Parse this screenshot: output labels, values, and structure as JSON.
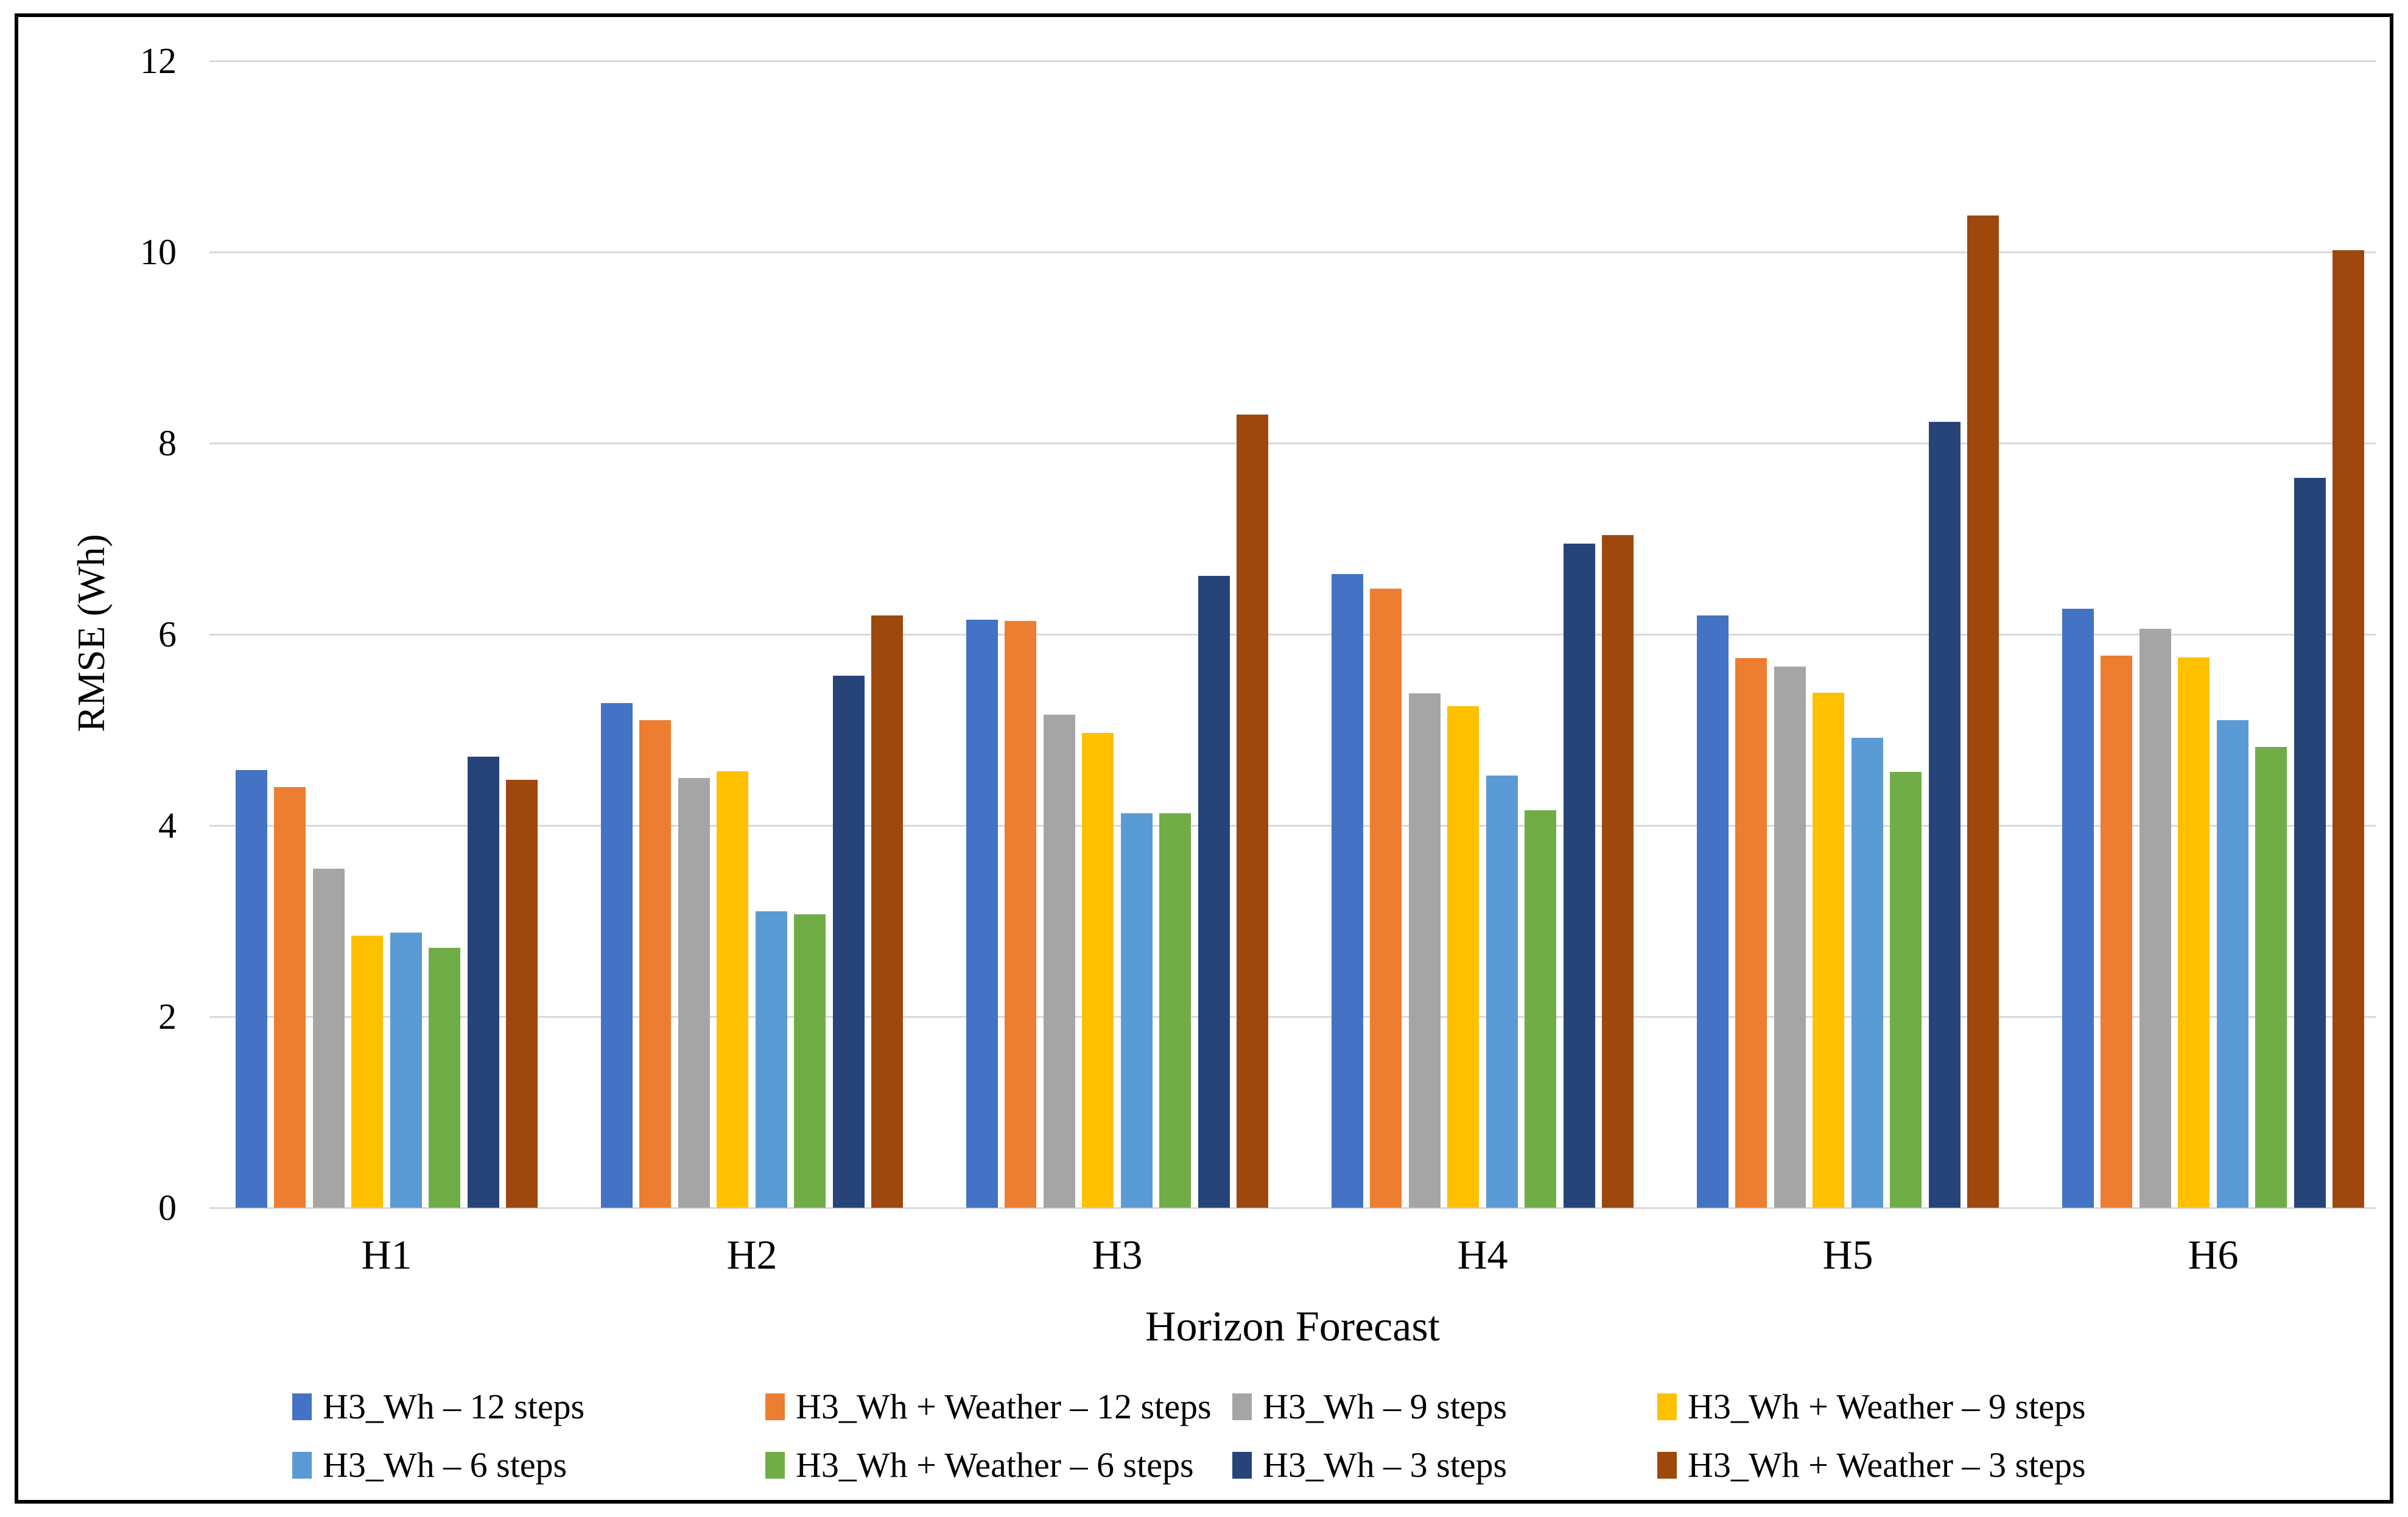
{
  "chart_data": {
    "type": "bar",
    "title": "",
    "xlabel": "Horizon Forecast",
    "ylabel": "RMSE (Wh)",
    "ylim": [
      0,
      12
    ],
    "yticks": [
      0,
      2,
      4,
      6,
      8,
      10,
      12
    ],
    "grid": "horizontal-light-gray",
    "gridline_color": "#D9D9D9",
    "legend_position": "bottom",
    "legend_rows": 2,
    "categories": [
      "H1",
      "H2",
      "H3",
      "H4",
      "H5",
      "H6"
    ],
    "series": [
      {
        "name": "H3_Wh – 12 steps",
        "color": "#4472C4",
        "values": [
          4.58,
          5.28,
          6.15,
          6.63,
          6.2,
          6.27
        ]
      },
      {
        "name": "H3_Wh + Weather – 12 steps",
        "color": "#ED7D31",
        "values": [
          4.4,
          5.1,
          6.14,
          6.48,
          5.75,
          5.78
        ]
      },
      {
        "name": "H3_Wh – 9 steps",
        "color": "#A5A5A5",
        "values": [
          3.55,
          4.5,
          5.16,
          5.38,
          5.66,
          6.06
        ]
      },
      {
        "name": "H3_Wh + Weather – 9 steps",
        "color": "#FFC000",
        "values": [
          2.85,
          4.57,
          4.97,
          5.25,
          5.39,
          5.76
        ]
      },
      {
        "name": "H3_Wh – 6 steps",
        "color": "#5B9BD5",
        "values": [
          2.88,
          3.1,
          4.13,
          4.52,
          4.92,
          5.1
        ]
      },
      {
        "name": "H3_Wh + Weather – 6 steps",
        "color": "#70AD47",
        "values": [
          2.72,
          3.07,
          4.13,
          4.16,
          4.56,
          4.82
        ]
      },
      {
        "name": "H3_Wh – 3 steps",
        "color": "#264478",
        "values": [
          4.72,
          5.57,
          6.61,
          6.95,
          8.22,
          7.64
        ]
      },
      {
        "name": "H3_Wh + Weather – 3 steps",
        "color": "#9E480E",
        "values": [
          4.48,
          6.2,
          8.3,
          7.04,
          10.38,
          10.02
        ]
      }
    ]
  }
}
